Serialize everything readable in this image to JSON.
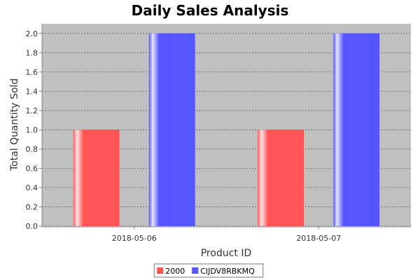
{
  "chart_data": {
    "type": "bar",
    "title": "Daily Sales Analysis",
    "xlabel": "Product ID",
    "ylabel": "Total Quantity Sold",
    "categories": [
      "2018-05-06",
      "2018-05-07"
    ],
    "series": [
      {
        "name": "2000",
        "values": [
          1.0,
          1.0
        ],
        "color": "#ff5555"
      },
      {
        "name": "CIJDV8RBKMQ",
        "values": [
          2.0,
          2.0
        ],
        "color": "#5555ff"
      }
    ],
    "ylim": [
      0,
      2.1
    ],
    "yticks": [
      0.0,
      0.2,
      0.4,
      0.6,
      0.8,
      1.0,
      1.2,
      1.4,
      1.6,
      1.8,
      2.0
    ],
    "ytick_labels": [
      "0.0",
      "0.2",
      "0.4",
      "0.6",
      "0.8",
      "1.0",
      "1.2",
      "1.4",
      "1.6",
      "1.8",
      "2.0"
    ],
    "grid": true,
    "legend_position": "bottom",
    "plot_background": "#c0c0c0"
  }
}
